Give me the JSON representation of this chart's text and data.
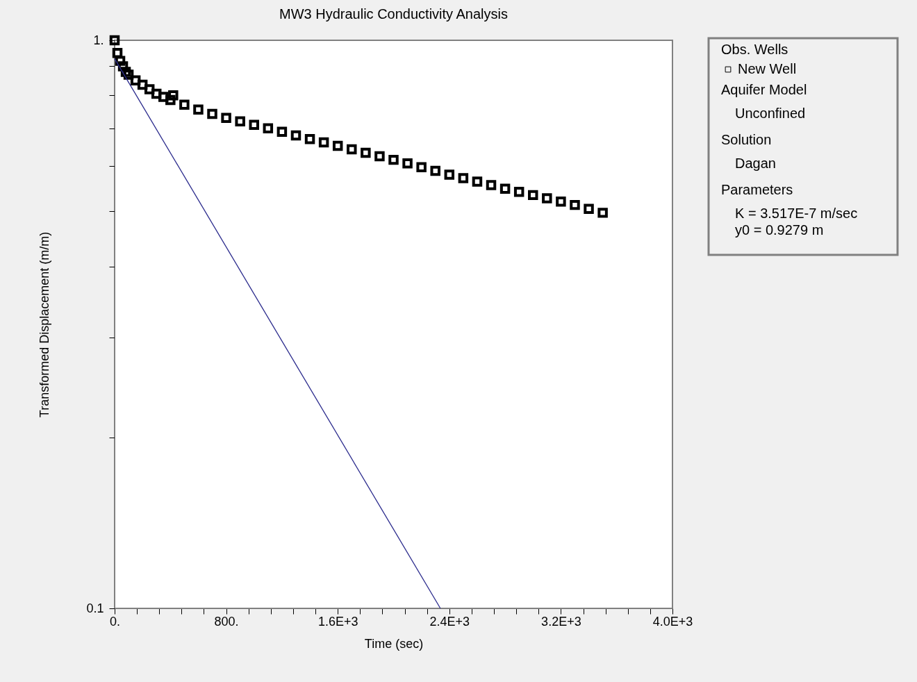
{
  "chart_data": {
    "type": "scatter",
    "title": "MW3 Hydraulic Conductivity Analysis",
    "xlabel": "Time (sec)",
    "ylabel": "Transformed Displacement (m/m)",
    "legend_title": "Obs. Wells",
    "legend": "right",
    "marker": "square",
    "log": "y",
    "grid": false,
    "xlim": [
      0,
      4000
    ],
    "ylim": [
      0.1,
      1
    ],
    "xticks": [
      {
        "value": 0,
        "label": "0."
      },
      {
        "value": 160,
        "label": null
      },
      {
        "value": 320,
        "label": null
      },
      {
        "value": 480,
        "label": null
      },
      {
        "value": 640,
        "label": null
      },
      {
        "value": 800,
        "label": "800."
      },
      {
        "value": 960,
        "label": null
      },
      {
        "value": 1120,
        "label": null
      },
      {
        "value": 1280,
        "label": null
      },
      {
        "value": 1440,
        "label": null
      },
      {
        "value": 1600,
        "label": "1.6E+3"
      },
      {
        "value": 1760,
        "label": null
      },
      {
        "value": 1920,
        "label": null
      },
      {
        "value": 2080,
        "label": null
      },
      {
        "value": 2240,
        "label": null
      },
      {
        "value": 2400,
        "label": "2.4E+3"
      },
      {
        "value": 2560,
        "label": null
      },
      {
        "value": 2720,
        "label": null
      },
      {
        "value": 2880,
        "label": null
      },
      {
        "value": 3040,
        "label": null
      },
      {
        "value": 3200,
        "label": "3.2E+3"
      },
      {
        "value": 3360,
        "label": null
      },
      {
        "value": 3520,
        "label": null
      },
      {
        "value": 3680,
        "label": null
      },
      {
        "value": 3840,
        "label": null
      },
      {
        "value": 4000,
        "label": "4.0E+3"
      }
    ],
    "yticks": [
      {
        "value": 1,
        "label": "1."
      },
      {
        "value": 0.9,
        "label": null
      },
      {
        "value": 0.8,
        "label": null
      },
      {
        "value": 0.7,
        "label": null
      },
      {
        "value": 0.6,
        "label": null
      },
      {
        "value": 0.5,
        "label": null
      },
      {
        "value": 0.4,
        "label": null
      },
      {
        "value": 0.3,
        "label": null
      },
      {
        "value": 0.2,
        "label": null
      },
      0.1
    ],
    "series": [
      {
        "name": "New Well",
        "color": "#000000",
        "x": [
          0,
          20,
          40,
          60,
          80,
          100,
          150,
          200,
          250,
          300,
          350,
          400,
          420,
          500,
          600,
          700,
          800,
          900,
          1000,
          1100,
          1200,
          1300,
          1400,
          1500,
          1600,
          1700,
          1800,
          1900,
          2000,
          2100,
          2200,
          2300,
          2400,
          2500,
          2600,
          2700,
          2800,
          2900,
          3000,
          3100,
          3200,
          3300,
          3400,
          3500
        ],
        "values": [
          1.0,
          0.95,
          0.92,
          0.9,
          0.88,
          0.87,
          0.85,
          0.835,
          0.82,
          0.805,
          0.795,
          0.785,
          0.8,
          0.77,
          0.755,
          0.742,
          0.73,
          0.72,
          0.71,
          0.7,
          0.69,
          0.68,
          0.67,
          0.661,
          0.652,
          0.643,
          0.634,
          0.625,
          0.616,
          0.607,
          0.598,
          0.589,
          0.58,
          0.572,
          0.564,
          0.556,
          0.548,
          0.541,
          0.534,
          0.527,
          0.52,
          0.513,
          0.505,
          0.497
        ]
      },
      {
        "type": "line",
        "marker": "none",
        "color": "#2a2a8c",
        "x": [
          0,
          2336
        ],
        "values": [
          0.9279,
          0.1
        ]
      }
    ],
    "annotations": [
      "Aquifer Model",
      "Unconfined",
      "Solution",
      "Dagan",
      "Parameters",
      "K  = 3.517E-7 m/sec",
      "y0 = 0.9279 m"
    ]
  }
}
